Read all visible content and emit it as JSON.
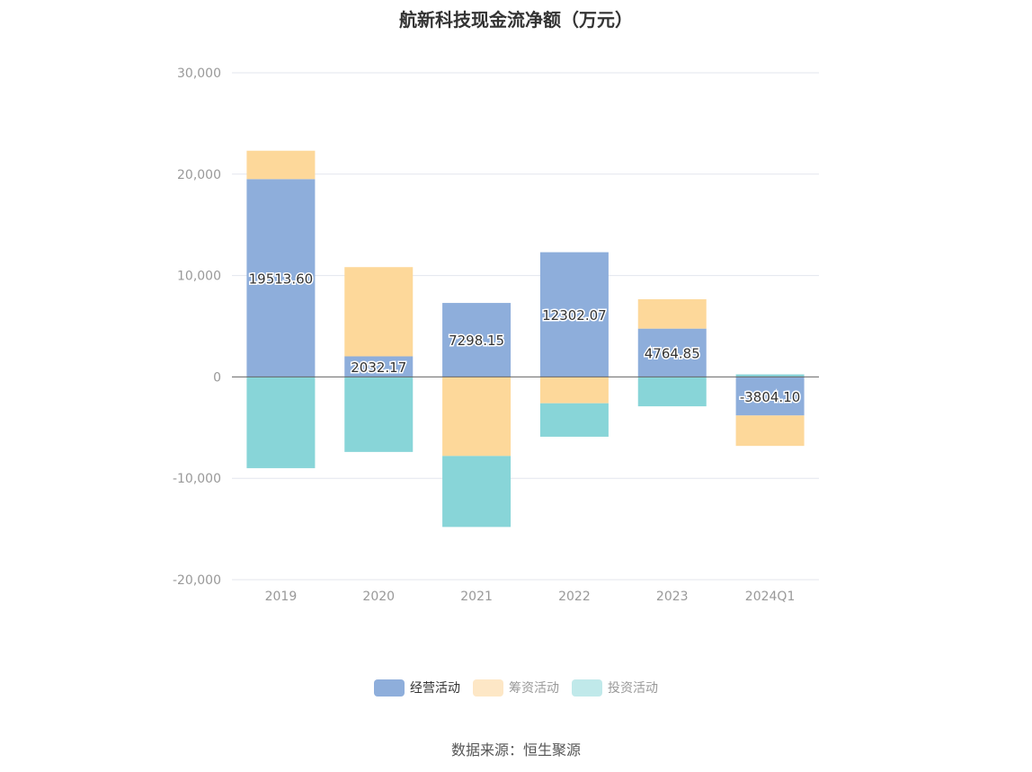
{
  "chart_data": {
    "type": "bar",
    "stacked": true,
    "title": "航新科技现金流净额（万元）",
    "categories": [
      "2019",
      "2020",
      "2021",
      "2022",
      "2023",
      "2024Q1"
    ],
    "series": [
      {
        "name": "经营活动",
        "color": "#8eaedb",
        "values": [
          19513.6,
          2032.17,
          7298.15,
          12302.07,
          4764.85,
          -3804.1
        ]
      },
      {
        "name": "筹资活动",
        "color": "#fdd89a",
        "values": [
          2800,
          8800,
          -7800,
          -2600,
          2900,
          -3000
        ]
      },
      {
        "name": "投资活动",
        "color": "#88d5d8",
        "values": [
          -9000,
          -7400,
          -7000,
          -3300,
          -2900,
          250
        ]
      }
    ],
    "data_labels": [
      "19513.60",
      "2032.17",
      "7298.15",
      "12302.07",
      "4764.85",
      "-3804.10"
    ],
    "ylim": [
      -20000,
      30000
    ],
    "yticks": [
      "30,000",
      "20,000",
      "10,000",
      "0",
      "-10,000",
      "-20,000"
    ],
    "ytick_values": [
      30000,
      20000,
      10000,
      0,
      -10000,
      -20000
    ],
    "grid": true,
    "legend_position": "bottom"
  },
  "legend": [
    {
      "label": "经营活动",
      "color": "#8eaedb"
    },
    {
      "label": "筹资活动",
      "color": "#fde7c6"
    },
    {
      "label": "投资活动",
      "color": "#c0e9ea"
    }
  ],
  "source_text": "数据来源：恒生聚源"
}
